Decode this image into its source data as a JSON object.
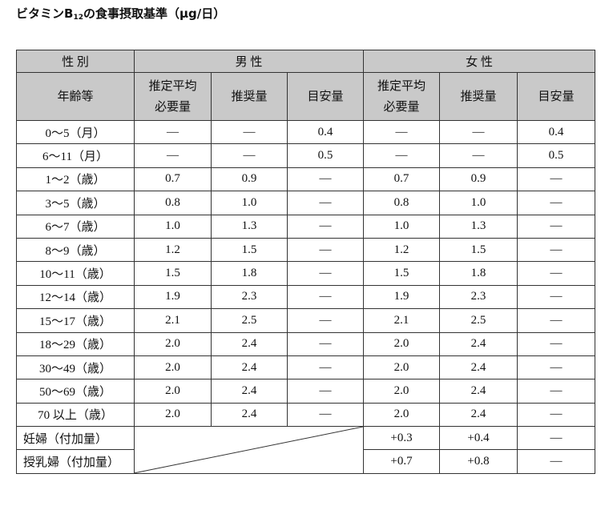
{
  "title": {
    "prefix": "ビタミンB",
    "sub": "12",
    "suffix": "の食事摂取基準（μg/日）"
  },
  "table": {
    "header": {
      "sex": "性 別",
      "male": "男 性",
      "female": "女 性",
      "age": "年齢等",
      "columns": [
        "推定平均\n必要量",
        "推奨量",
        "目安量",
        "推定平均\n必要量",
        "推奨量",
        "目安量"
      ]
    },
    "rows": [
      [
        "0～5（月）",
        "—",
        "—",
        "0.4",
        "—",
        "—",
        "0.4"
      ],
      [
        "6～11（月）",
        "—",
        "—",
        "0.5",
        "—",
        "—",
        "0.5"
      ],
      [
        "1～2（歳）",
        "0.7",
        "0.9",
        "—",
        "0.7",
        "0.9",
        "—"
      ],
      [
        "3～5（歳）",
        "0.8",
        "1.0",
        "—",
        "0.8",
        "1.0",
        "—"
      ],
      [
        "6～7（歳）",
        "1.0",
        "1.3",
        "—",
        "1.0",
        "1.3",
        "—"
      ],
      [
        "8～9（歳）",
        "1.2",
        "1.5",
        "—",
        "1.2",
        "1.5",
        "—"
      ],
      [
        "10～11（歳）",
        "1.5",
        "1.8",
        "—",
        "1.5",
        "1.8",
        "—"
      ],
      [
        "12～14（歳）",
        "1.9",
        "2.3",
        "—",
        "1.9",
        "2.3",
        "—"
      ],
      [
        "15～17（歳）",
        "2.1",
        "2.5",
        "—",
        "2.1",
        "2.5",
        "—"
      ],
      [
        "18～29（歳）",
        "2.0",
        "2.4",
        "—",
        "2.0",
        "2.4",
        "—"
      ],
      [
        "30～49（歳）",
        "2.0",
        "2.4",
        "—",
        "2.0",
        "2.4",
        "—"
      ],
      [
        "50～69（歳）",
        "2.0",
        "2.4",
        "—",
        "2.0",
        "2.4",
        "—"
      ],
      [
        "70 以上（歳）",
        "2.0",
        "2.4",
        "—",
        "2.0",
        "2.4",
        "—"
      ],
      [
        "妊婦（付加量）",
        "+0.3",
        "+0.4",
        "—"
      ],
      [
        "授乳婦（付加量）",
        "+0.7",
        "+0.8",
        "—"
      ]
    ]
  }
}
